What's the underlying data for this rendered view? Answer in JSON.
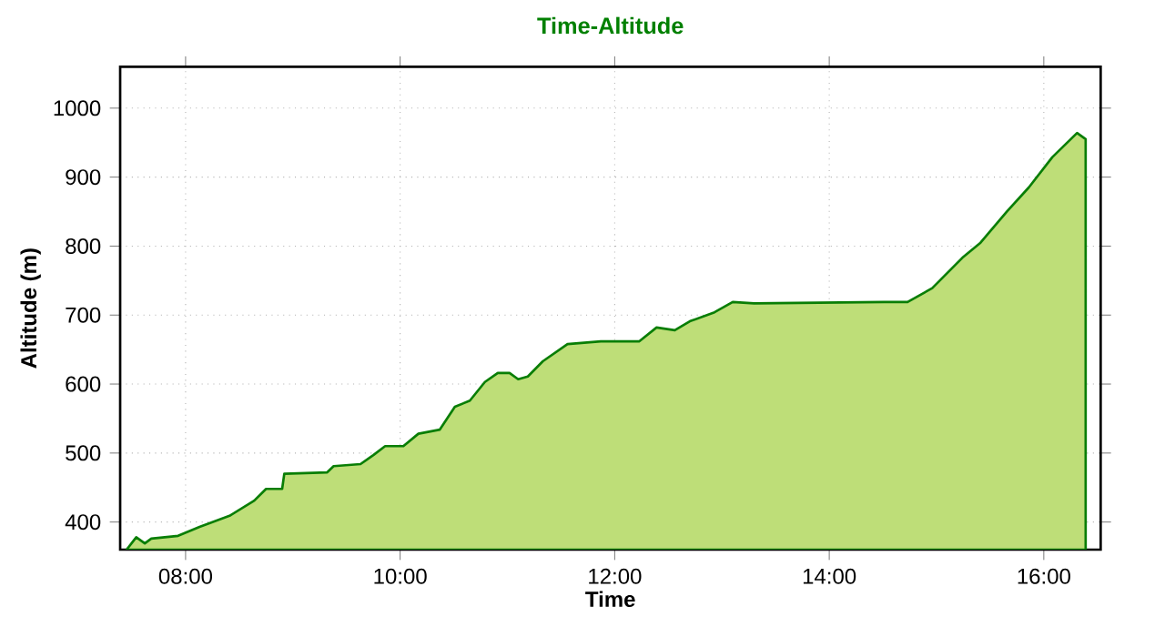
{
  "chart_data": {
    "type": "area",
    "title": "Time-Altitude",
    "xlabel": "Time",
    "ylabel": "Altitude (m)",
    "xlim": [
      7.39,
      16.53
    ],
    "ylim": [
      360,
      1060
    ],
    "xticks": [
      {
        "value": 8,
        "label": "08:00"
      },
      {
        "value": 10,
        "label": "10:00"
      },
      {
        "value": 12,
        "label": "12:00"
      },
      {
        "value": 14,
        "label": "14:00"
      },
      {
        "value": 16,
        "label": "16:00"
      }
    ],
    "yticks": [
      400,
      500,
      600,
      700,
      800,
      900,
      1000
    ],
    "grid": true,
    "x": [
      7.45,
      7.54,
      7.62,
      7.68,
      7.93,
      8.13,
      8.41,
      8.64,
      8.75,
      8.9,
      8.92,
      9.32,
      9.38,
      9.63,
      9.75,
      9.86,
      10.03,
      10.17,
      10.37,
      10.51,
      10.65,
      10.79,
      10.91,
      11.02,
      11.1,
      11.19,
      11.33,
      11.56,
      11.87,
      12.23,
      12.39,
      12.56,
      12.7,
      12.93,
      13.1,
      13.3,
      14.51,
      14.73,
      14.96,
      15.24,
      15.41,
      15.66,
      15.86,
      16.08,
      16.31,
      16.39
    ],
    "series": [
      {
        "color": "#bede78",
        "values": [
          360,
          378,
          369,
          376,
          380,
          393,
          409,
          431,
          448,
          448,
          470,
          472,
          481,
          484,
          497,
          510,
          510,
          528,
          534,
          567,
          576,
          603,
          616,
          616,
          607,
          611,
          633,
          658,
          662,
          662,
          682,
          678,
          691,
          704,
          719,
          717,
          719,
          719,
          739,
          783,
          805,
          851,
          885,
          929,
          964,
          955
        ]
      }
    ]
  }
}
